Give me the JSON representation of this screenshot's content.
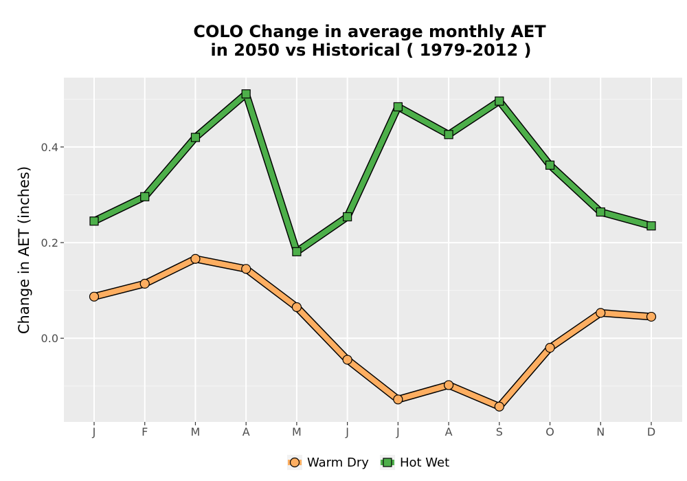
{
  "chart_data": {
    "type": "line",
    "title": [
      "COLO  Change in average monthly AET",
      "in 2050 vs Historical ( 1979-2012 )"
    ],
    "xlabel": "",
    "ylabel": "Change in AET (inches)",
    "categories": [
      "J",
      "F",
      "M",
      "A",
      "M",
      "J",
      "J",
      "A",
      "S",
      "O",
      "N",
      "D"
    ],
    "ylim": [
      -0.175,
      0.545
    ],
    "yticks": [
      0.0,
      0.2,
      0.4
    ],
    "ytick_labels": [
      "0.0",
      "0.2",
      "0.4"
    ],
    "grid": true,
    "legend_position": "bottom",
    "series": [
      {
        "name": "Warm Dry",
        "marker": "circle",
        "color": "#FDAE61",
        "values": [
          0.087,
          0.114,
          0.166,
          0.145,
          0.065,
          -0.045,
          -0.128,
          -0.098,
          -0.143,
          -0.02,
          0.053,
          0.045
        ]
      },
      {
        "name": "Hot Wet",
        "marker": "square",
        "color": "#4DAF4A",
        "values": [
          0.245,
          0.296,
          0.42,
          0.511,
          0.181,
          0.254,
          0.484,
          0.426,
          0.496,
          0.362,
          0.264,
          0.235
        ]
      }
    ]
  }
}
